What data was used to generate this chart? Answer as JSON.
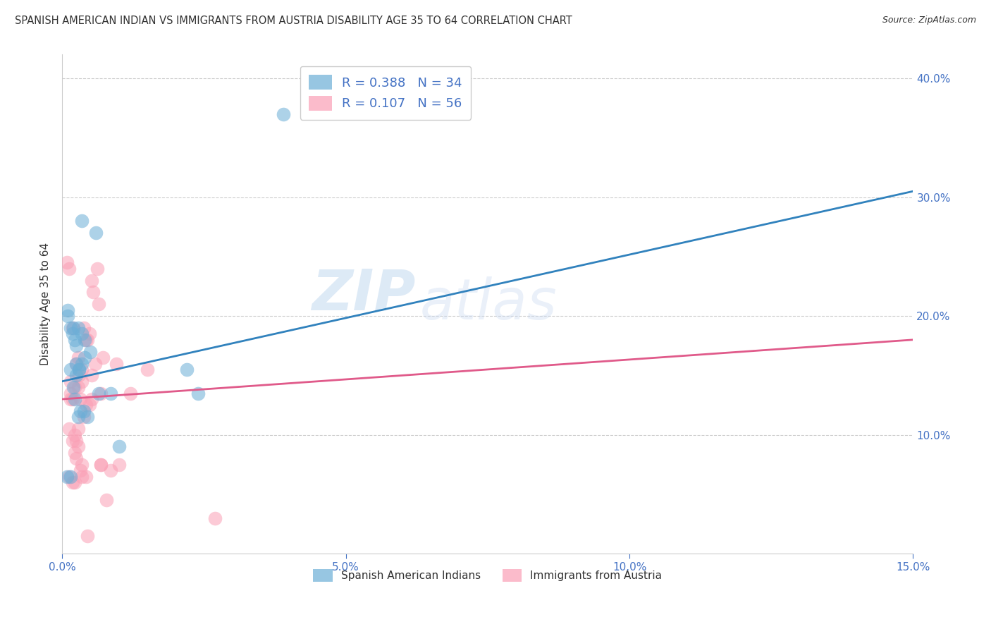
{
  "title": "SPANISH AMERICAN INDIAN VS IMMIGRANTS FROM AUSTRIA DISABILITY AGE 35 TO 64 CORRELATION CHART",
  "source": "Source: ZipAtlas.com",
  "xlabel_ticks": [
    "0.0%",
    "5.0%",
    "10.0%",
    "15.0%"
  ],
  "xlabel_vals": [
    0.0,
    5.0,
    10.0,
    15.0
  ],
  "ylabel_ticks": [
    "10.0%",
    "20.0%",
    "30.0%",
    "40.0%"
  ],
  "ylabel_vals": [
    10.0,
    20.0,
    30.0,
    40.0
  ],
  "xmin": 0.0,
  "xmax": 15.0,
  "ymin": 0.0,
  "ymax": 42.0,
  "legend1_r": "0.388",
  "legend1_n": "34",
  "legend2_r": "0.107",
  "legend2_n": "56",
  "legend1_label": "Spanish American Indians",
  "legend2_label": "Immigrants from Austria",
  "blue_color": "#6baed6",
  "pink_color": "#fa9fb5",
  "blue_line_color": "#3182bd",
  "pink_line_color": "#e05a8a",
  "watermark_zip": "ZIP",
  "watermark_atlas": "atlas",
  "blue_line_x": [
    0.0,
    15.0
  ],
  "blue_line_y": [
    14.5,
    30.5
  ],
  "pink_line_x": [
    0.0,
    15.0
  ],
  "pink_line_y": [
    13.0,
    18.0
  ],
  "blue_scatter_x": [
    0.15,
    0.25,
    0.35,
    0.1,
    0.2,
    0.3,
    0.25,
    0.1,
    0.2,
    0.4,
    0.5,
    0.6,
    0.65,
    0.15,
    0.25,
    0.3,
    0.35,
    0.4,
    0.85,
    1.0,
    0.18,
    0.22,
    0.28,
    0.32,
    0.38,
    0.45,
    0.08,
    0.15,
    2.2,
    2.4,
    0.22,
    0.28,
    0.35,
    3.9
  ],
  "blue_scatter_y": [
    15.5,
    16.0,
    28.0,
    20.5,
    19.0,
    15.5,
    17.5,
    20.0,
    14.0,
    18.0,
    17.0,
    27.0,
    13.5,
    19.0,
    15.0,
    15.5,
    16.0,
    16.5,
    13.5,
    9.0,
    18.5,
    13.0,
    11.5,
    12.0,
    12.0,
    11.5,
    6.5,
    6.5,
    15.5,
    13.5,
    18.0,
    19.0,
    18.5,
    37.0
  ],
  "pink_scatter_x": [
    0.08,
    0.12,
    0.15,
    0.18,
    0.22,
    0.25,
    0.28,
    0.3,
    0.35,
    0.38,
    0.42,
    0.45,
    0.48,
    0.52,
    0.55,
    0.58,
    0.62,
    0.65,
    0.68,
    0.72,
    0.12,
    0.15,
    0.18,
    0.22,
    0.25,
    0.28,
    0.32,
    0.35,
    0.42,
    0.48,
    0.52,
    0.95,
    1.5,
    0.12,
    0.18,
    0.22,
    0.25,
    0.28,
    0.32,
    0.35,
    0.38,
    0.42,
    0.68,
    0.78,
    1.2,
    0.45,
    0.15,
    0.18,
    0.22,
    0.28,
    0.35,
    0.52,
    0.68,
    0.85,
    1.0,
    2.7
  ],
  "pink_scatter_y": [
    24.5,
    24.0,
    13.5,
    19.0,
    14.0,
    16.0,
    16.5,
    15.0,
    15.5,
    19.0,
    18.0,
    18.0,
    18.5,
    23.0,
    22.0,
    16.0,
    24.0,
    21.0,
    13.5,
    16.5,
    10.5,
    13.0,
    9.5,
    8.5,
    8.0,
    14.0,
    13.0,
    14.5,
    12.5,
    12.5,
    13.0,
    16.0,
    15.5,
    6.5,
    6.0,
    6.0,
    9.5,
    9.0,
    7.0,
    6.5,
    11.5,
    6.5,
    7.5,
    4.5,
    13.5,
    1.5,
    14.5,
    13.0,
    10.0,
    10.5,
    7.5,
    15.0,
    7.5,
    7.0,
    7.5,
    3.0
  ],
  "title_color": "#333333",
  "axis_color": "#4472c4",
  "tick_label_color": "#4472c4",
  "grid_color": "#cccccc",
  "background_color": "#ffffff"
}
